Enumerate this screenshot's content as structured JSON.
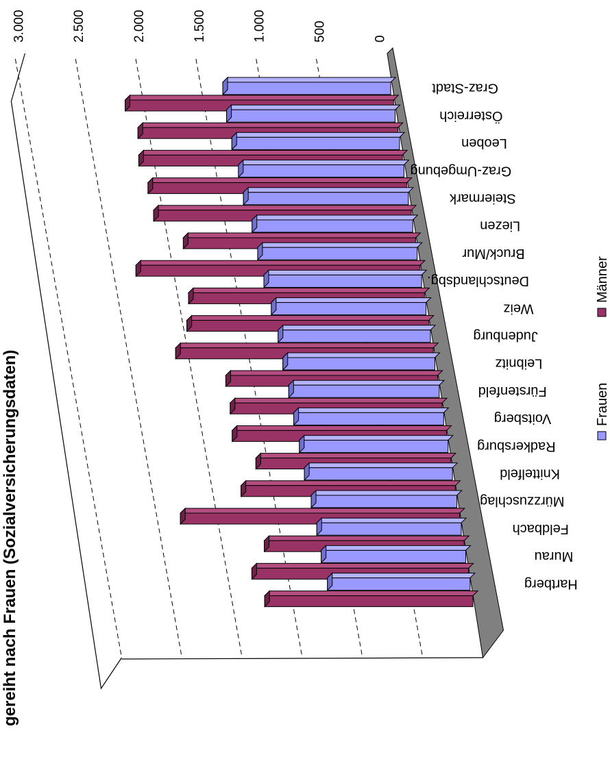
{
  "chart_data": {
    "type": "bar",
    "orientation": "horizontal-3d",
    "title": "gereiht nach Frauen (Sozialversicherungsdaten)",
    "categories": [
      "Graz-Stadt",
      "Österreich",
      "Leoben",
      "Graz-Umgebung",
      "Steiermark",
      "Liezen",
      "Bruck/Mur",
      "Deutschlandsbg.",
      "Weiz",
      "Judenburg",
      "Leibnitz",
      "Fürstenfeld",
      "Voitsberg",
      "Radkersburg",
      "Knittelfeld",
      "Mürzzuschlag",
      "Feldbach",
      "Murau",
      "Hartberg"
    ],
    "series": [
      {
        "name": "Frauen",
        "color": "#9999ff",
        "values": [
          1395,
          1400,
          1393,
          1375,
          1370,
          1335,
          1325,
          1310,
          1285,
          1265,
          1262,
          1250,
          1245,
          1235,
          1230,
          1210,
          1200,
          1200,
          1185
        ]
      },
      {
        "name": "Männer",
        "color": "#993366",
        "values": [
          2230,
          2160,
          2190,
          2150,
          2140,
          1930,
          2360,
          1960,
          2010,
          2140,
          1760,
          1760,
          1780,
          1620,
          1780,
          2320,
          1660,
          1800,
          1730
        ]
      }
    ],
    "tick_labels": [
      "0",
      "500",
      "1.000",
      "1.500",
      "2.000",
      "2.500",
      "3.000"
    ],
    "xlim": [
      0,
      3000
    ],
    "grid": true,
    "legend_position": "bottom",
    "rotation": "page rotated 90° clockwise"
  }
}
